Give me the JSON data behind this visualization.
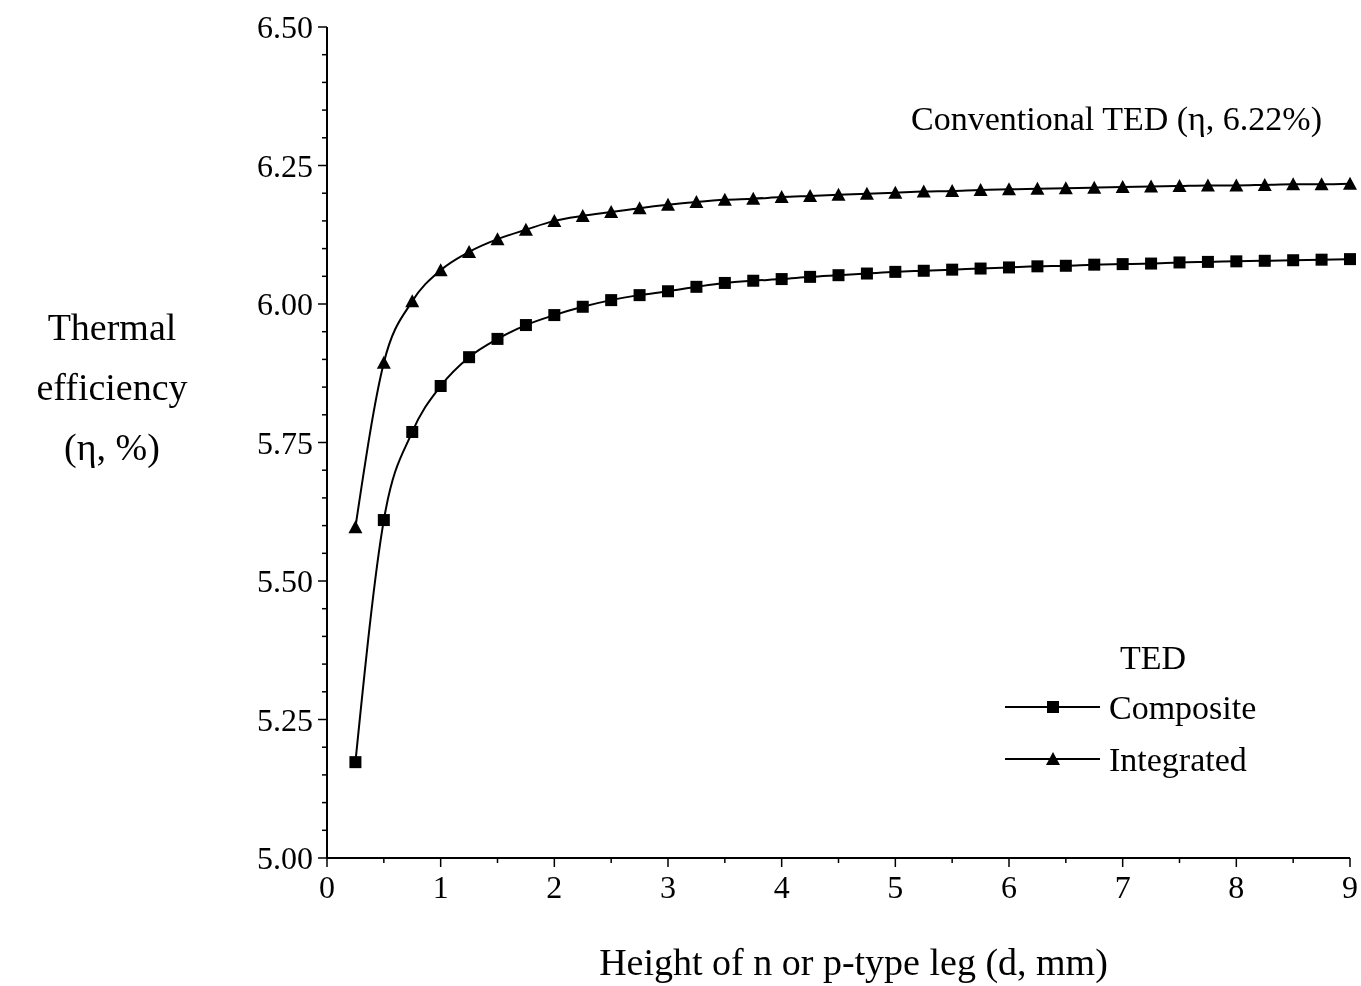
{
  "chart_data": {
    "type": "line",
    "xlabel": "Height of n or p-type leg (d, mm)",
    "ylabel": "Thermal efficiency (η, %)",
    "legend_title": "TED",
    "legend": "bottom right",
    "annotations": [
      "Conventional TED (η, 6.22%)"
    ],
    "x": [
      0.25,
      0.5,
      0.75,
      1,
      1.25,
      1.5,
      1.75,
      2,
      2.25,
      2.5,
      2.75,
      3,
      3.25,
      3.5,
      3.75,
      4,
      4.25,
      4.5,
      4.75,
      5,
      5.25,
      5.5,
      5.75,
      6,
      6.25,
      6.5,
      6.75,
      7,
      7.25,
      7.5,
      7.75,
      8,
      8.25,
      8.5,
      8.75,
      9
    ],
    "series": [
      {
        "name": "Composite",
        "color": "#000000",
        "marker": "square",
        "values": [
          5.173,
          5.61,
          5.769,
          5.852,
          5.904,
          5.937,
          5.962,
          5.98,
          5.995,
          6.007,
          6.016,
          6.023,
          6.031,
          6.038,
          6.042,
          6.045,
          6.049,
          6.052,
          6.055,
          6.058,
          6.06,
          6.062,
          6.064,
          6.066,
          6.068,
          6.069,
          6.071,
          6.072,
          6.073,
          6.075,
          6.076,
          6.077,
          6.078,
          6.079,
          6.08,
          6.081
        ]
      },
      {
        "name": "Integrated",
        "color": "#000000",
        "marker": "triangle",
        "values": [
          5.597,
          5.894,
          6.005,
          6.061,
          6.094,
          6.117,
          6.134,
          6.15,
          6.159,
          6.166,
          6.173,
          6.179,
          6.184,
          6.188,
          6.19,
          6.193,
          6.195,
          6.197,
          6.199,
          6.201,
          6.203,
          6.204,
          6.206,
          6.207,
          6.208,
          6.209,
          6.21,
          6.211,
          6.212,
          6.213,
          6.214,
          6.214,
          6.215,
          6.216,
          6.216,
          6.217
        ]
      }
    ],
    "line_style": "solid",
    "grid": false,
    "xlim": [
      0,
      9
    ],
    "xticks": [
      0,
      {
        "value": 0.5,
        "label": null
      },
      1,
      {
        "value": 1.5,
        "label": null
      },
      2,
      {
        "value": 2.5,
        "label": null
      },
      3,
      {
        "value": 3.5,
        "label": null
      },
      4,
      {
        "value": 4.5,
        "label": null
      },
      5,
      {
        "value": 5.5,
        "label": null
      },
      6,
      {
        "value": 6.5,
        "label": null
      },
      7,
      {
        "value": 7.5,
        "label": null
      },
      8,
      {
        "value": 8.5,
        "label": null
      },
      9
    ],
    "ylim": [
      5,
      6.5
    ],
    "yticks": [
      {
        "value": 5,
        "label": "5.00"
      },
      {
        "value": 5.05,
        "label": null
      },
      {
        "value": 5.1,
        "label": null
      },
      {
        "value": 5.15,
        "label": null
      },
      {
        "value": 5.2,
        "label": null
      },
      {
        "value": 5.25,
        "label": "5.25"
      },
      {
        "value": 5.3,
        "label": null
      },
      {
        "value": 5.35,
        "label": null
      },
      {
        "value": 5.4,
        "label": null
      },
      {
        "value": 5.45,
        "label": null
      },
      {
        "value": 5.5,
        "label": "5.50"
      },
      {
        "value": 5.55,
        "label": null
      },
      {
        "value": 5.6,
        "label": null
      },
      {
        "value": 5.65,
        "label": null
      },
      {
        "value": 5.7,
        "label": null
      },
      {
        "value": 5.75,
        "label": "5.75"
      },
      {
        "value": 5.8,
        "label": null
      },
      {
        "value": 5.85,
        "label": null
      },
      {
        "value": 5.9,
        "label": null
      },
      {
        "value": 5.95,
        "label": null
      },
      {
        "value": 6,
        "label": "6.00"
      },
      {
        "value": 6.05,
        "label": null
      },
      {
        "value": 6.1,
        "label": null
      },
      {
        "value": 6.15,
        "label": null
      },
      {
        "value": 6.2,
        "label": null
      },
      {
        "value": 6.25,
        "label": "6.25"
      },
      {
        "value": 6.3,
        "label": null
      },
      {
        "value": 6.35,
        "label": null
      },
      {
        "value": 6.4,
        "label": null
      },
      {
        "value": 6.45,
        "label": null
      },
      {
        "value": 6.5,
        "label": "6.50"
      }
    ]
  }
}
